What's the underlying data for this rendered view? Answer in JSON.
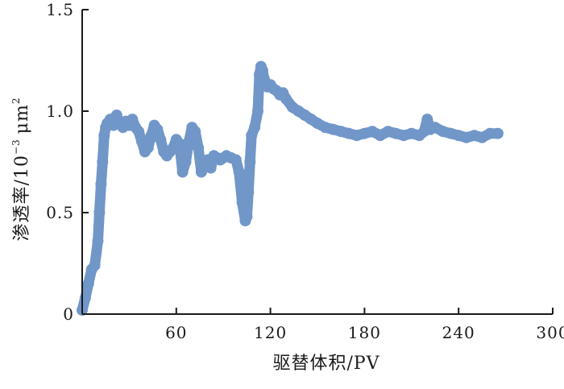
{
  "chart_data": {
    "type": "line",
    "title": "",
    "xlabel": "驱替体积/PV",
    "ylabel": {
      "main": "渗透率/10",
      "exponent": "−3",
      "unit": "μm",
      "unit_exponent": "2"
    },
    "xlim": [
      0,
      300
    ],
    "ylim": [
      0,
      1.5
    ],
    "x_ticks": [
      {
        "value": 60,
        "label": "60"
      },
      {
        "value": 120,
        "label": "120"
      },
      {
        "value": 180,
        "label": "180"
      },
      {
        "value": 240,
        "label": "240"
      },
      {
        "value": 300,
        "label": "300"
      }
    ],
    "y_ticks": [
      {
        "value": 0.0,
        "label": "0"
      },
      {
        "value": 0.5,
        "label": "0.5"
      },
      {
        "value": 1.0,
        "label": "1.0"
      },
      {
        "value": 1.5,
        "label": "1.5"
      }
    ],
    "grid": false,
    "series_color": "#7197c9",
    "series": [
      {
        "x": [
          0,
          2,
          4,
          6,
          8,
          10,
          11,
          12,
          13,
          14,
          15,
          16,
          18,
          20,
          22,
          24,
          26,
          28,
          30,
          32,
          34,
          36,
          38,
          40,
          42,
          44,
          46,
          48,
          50,
          52,
          54,
          56,
          58,
          60,
          62,
          64,
          66,
          68,
          70,
          72,
          74,
          76,
          78,
          80,
          82,
          84,
          86,
          88,
          90,
          92,
          95,
          98,
          100,
          102,
          104,
          105,
          106,
          107,
          108,
          110,
          112,
          113,
          114,
          115,
          116,
          118,
          120,
          122,
          124,
          126,
          128,
          130,
          134,
          138,
          142,
          146,
          150,
          155,
          160,
          165,
          170,
          175,
          180,
          185,
          190,
          195,
          200,
          205,
          210,
          215,
          218,
          220,
          222,
          225,
          230,
          235,
          240,
          245,
          250,
          255,
          260,
          265
        ],
        "y": [
          0.02,
          0.08,
          0.15,
          0.22,
          0.24,
          0.36,
          0.5,
          0.64,
          0.75,
          0.88,
          0.92,
          0.94,
          0.96,
          0.93,
          0.98,
          0.94,
          0.92,
          0.95,
          0.93,
          0.96,
          0.92,
          0.9,
          0.85,
          0.8,
          0.82,
          0.88,
          0.93,
          0.91,
          0.86,
          0.8,
          0.78,
          0.8,
          0.82,
          0.86,
          0.84,
          0.7,
          0.75,
          0.85,
          0.92,
          0.9,
          0.82,
          0.7,
          0.73,
          0.76,
          0.72,
          0.78,
          0.77,
          0.76,
          0.77,
          0.78,
          0.77,
          0.76,
          0.7,
          0.55,
          0.46,
          0.48,
          0.6,
          0.75,
          0.88,
          0.92,
          1.0,
          1.18,
          1.22,
          1.2,
          1.16,
          1.12,
          1.13,
          1.11,
          1.1,
          1.08,
          1.09,
          1.06,
          1.02,
          1.0,
          0.98,
          0.96,
          0.94,
          0.92,
          0.91,
          0.9,
          0.89,
          0.88,
          0.89,
          0.9,
          0.88,
          0.9,
          0.89,
          0.88,
          0.89,
          0.88,
          0.9,
          0.96,
          0.91,
          0.92,
          0.9,
          0.89,
          0.88,
          0.87,
          0.88,
          0.87,
          0.89,
          0.89
        ]
      }
    ]
  }
}
